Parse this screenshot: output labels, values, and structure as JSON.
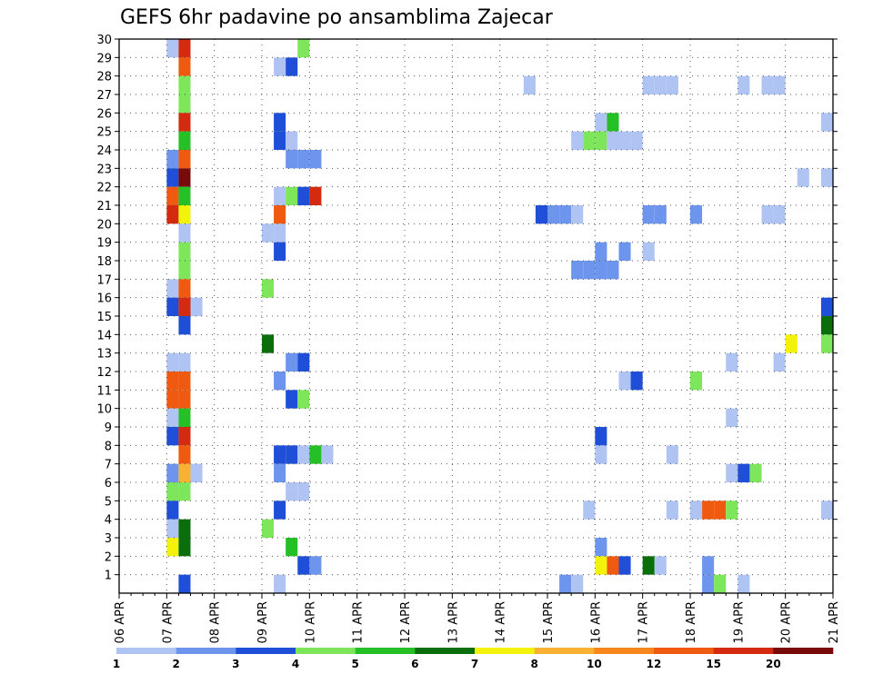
{
  "chart_data": {
    "type": "heatmap",
    "title": "GEFS 6hr padavine po ansamblima Zajecar",
    "x_tick_labels": [
      "06 APR",
      "07 APR",
      "08 APR",
      "09 APR",
      "10 APR",
      "11 APR",
      "12 APR",
      "13 APR",
      "14 APR",
      "15 APR",
      "16 APR",
      "17 APR",
      "18 APR",
      "19 APR",
      "20 APR",
      "21 APR"
    ],
    "x_steps_per_day": 4,
    "x_range": [
      "06 APR 00Z",
      "21 APR 00Z"
    ],
    "y_tick_labels": [
      "1",
      "2",
      "3",
      "4",
      "5",
      "6",
      "7",
      "8",
      "9",
      "10",
      "11",
      "12",
      "13",
      "14",
      "15",
      "16",
      "17",
      "18",
      "19",
      "20",
      "21",
      "22",
      "23",
      "24",
      "25",
      "26",
      "27",
      "28",
      "29",
      "30"
    ],
    "y_range": [
      0,
      30
    ],
    "grid": true,
    "colorbar": {
      "levels": [
        "1",
        "2",
        "3",
        "4",
        "5",
        "6",
        "7",
        "8",
        "10",
        "12",
        "15",
        "20"
      ],
      "colors": [
        "#b0c4f4",
        "#6e95ee",
        "#1f4fd8",
        "#7de65a",
        "#25c025",
        "#0a6e0a",
        "#f2f20a",
        "#f9b134",
        "#f7861c",
        "#f05a10",
        "#d42a10",
        "#7a0a0a"
      ]
    },
    "cells": [
      [
        30,
        5,
        1
      ],
      [
        30,
        16,
        1
      ],
      [
        30,
        17,
        2
      ],
      [
        30,
        18,
        1
      ],
      [
        30,
        47,
        3
      ],
      [
        30,
        48,
        6
      ],
      [
        30,
        49,
        5
      ],
      [
        30,
        50,
        1
      ],
      [
        29,
        4,
        0
      ],
      [
        29,
        5,
        10
      ],
      [
        29,
        15,
        3
      ],
      [
        28,
        5,
        9
      ],
      [
        28,
        13,
        0
      ],
      [
        28,
        14,
        2
      ],
      [
        27,
        5,
        3
      ],
      [
        27,
        34,
        0
      ],
      [
        27,
        44,
        0
      ],
      [
        27,
        45,
        0
      ],
      [
        27,
        46,
        0
      ],
      [
        27,
        52,
        0
      ],
      [
        27,
        54,
        0
      ],
      [
        27,
        55,
        0
      ],
      [
        26,
        5,
        3
      ],
      [
        25,
        5,
        10
      ],
      [
        25,
        13,
        2
      ],
      [
        25,
        40,
        0
      ],
      [
        25,
        41,
        4
      ],
      [
        25,
        59,
        0
      ],
      [
        24,
        5,
        4
      ],
      [
        24,
        13,
        2
      ],
      [
        24,
        14,
        0
      ],
      [
        24,
        38,
        0
      ],
      [
        24,
        39,
        3
      ],
      [
        24,
        40,
        3
      ],
      [
        24,
        41,
        0
      ],
      [
        24,
        42,
        0
      ],
      [
        24,
        43,
        0
      ],
      [
        23,
        4,
        1
      ],
      [
        23,
        5,
        9
      ],
      [
        23,
        14,
        1
      ],
      [
        23,
        15,
        1
      ],
      [
        23,
        16,
        1
      ],
      [
        22,
        4,
        2
      ],
      [
        22,
        5,
        11
      ],
      [
        22,
        57,
        0
      ],
      [
        22,
        59,
        0
      ],
      [
        21,
        4,
        9
      ],
      [
        21,
        5,
        4
      ],
      [
        21,
        13,
        0
      ],
      [
        21,
        14,
        3
      ],
      [
        21,
        15,
        2
      ],
      [
        21,
        16,
        10
      ],
      [
        20,
        4,
        10
      ],
      [
        20,
        5,
        6
      ],
      [
        20,
        13,
        9
      ],
      [
        20,
        35,
        2
      ],
      [
        20,
        36,
        1
      ],
      [
        20,
        37,
        1
      ],
      [
        20,
        38,
        0
      ],
      [
        20,
        44,
        1
      ],
      [
        20,
        45,
        1
      ],
      [
        20,
        48,
        1
      ],
      [
        20,
        54,
        0
      ],
      [
        20,
        55,
        0
      ],
      [
        19,
        5,
        0
      ],
      [
        19,
        12,
        0
      ],
      [
        19,
        13,
        0
      ],
      [
        18,
        5,
        3
      ],
      [
        18,
        13,
        2
      ],
      [
        18,
        40,
        1
      ],
      [
        18,
        42,
        1
      ],
      [
        18,
        44,
        0
      ],
      [
        17,
        5,
        3
      ],
      [
        17,
        38,
        1
      ],
      [
        17,
        39,
        1
      ],
      [
        17,
        40,
        1
      ],
      [
        17,
        41,
        1
      ],
      [
        16,
        4,
        0
      ],
      [
        16,
        5,
        9
      ],
      [
        16,
        12,
        3
      ],
      [
        15,
        4,
        2
      ],
      [
        15,
        5,
        10
      ],
      [
        15,
        6,
        0
      ],
      [
        15,
        59,
        2
      ],
      [
        14,
        5,
        2
      ],
      [
        14,
        59,
        5
      ],
      [
        13,
        12,
        5
      ],
      [
        13,
        56,
        6
      ],
      [
        13,
        59,
        3
      ],
      [
        12,
        4,
        0
      ],
      [
        12,
        5,
        0
      ],
      [
        12,
        14,
        1
      ],
      [
        12,
        15,
        2
      ],
      [
        12,
        51,
        0
      ],
      [
        12,
        55,
        0
      ],
      [
        11,
        4,
        9
      ],
      [
        11,
        5,
        9
      ],
      [
        11,
        13,
        1
      ],
      [
        11,
        42,
        0
      ],
      [
        11,
        43,
        2
      ],
      [
        11,
        48,
        3
      ],
      [
        10,
        4,
        9
      ],
      [
        10,
        5,
        9
      ],
      [
        10,
        14,
        2
      ],
      [
        10,
        15,
        3
      ],
      [
        9,
        4,
        0
      ],
      [
        9,
        5,
        4
      ],
      [
        9,
        51,
        0
      ],
      [
        8,
        4,
        2
      ],
      [
        8,
        5,
        10
      ],
      [
        8,
        40,
        2
      ],
      [
        7,
        5,
        9
      ],
      [
        7,
        13,
        2
      ],
      [
        7,
        14,
        2
      ],
      [
        7,
        15,
        0
      ],
      [
        7,
        16,
        4
      ],
      [
        7,
        17,
        0
      ],
      [
        7,
        40,
        0
      ],
      [
        7,
        46,
        0
      ],
      [
        6,
        4,
        1
      ],
      [
        6,
        5,
        7
      ],
      [
        6,
        6,
        0
      ],
      [
        6,
        13,
        1
      ],
      [
        6,
        51,
        0
      ],
      [
        6,
        52,
        2
      ],
      [
        6,
        53,
        3
      ],
      [
        5,
        4,
        3
      ],
      [
        5,
        5,
        3
      ],
      [
        5,
        14,
        0
      ],
      [
        5,
        15,
        0
      ],
      [
        4,
        4,
        2
      ],
      [
        4,
        13,
        2
      ],
      [
        4,
        39,
        0
      ],
      [
        4,
        46,
        0
      ],
      [
        4,
        48,
        0
      ],
      [
        4,
        49,
        9
      ],
      [
        4,
        50,
        9
      ],
      [
        4,
        51,
        3
      ],
      [
        4,
        59,
        0
      ],
      [
        3,
        4,
        0
      ],
      [
        3,
        5,
        5
      ],
      [
        3,
        12,
        3
      ],
      [
        2,
        4,
        6
      ],
      [
        2,
        5,
        5
      ],
      [
        2,
        14,
        4
      ],
      [
        2,
        40,
        1
      ],
      [
        1,
        15,
        2
      ],
      [
        1,
        16,
        1
      ],
      [
        1,
        40,
        6
      ],
      [
        1,
        41,
        9
      ],
      [
        1,
        42,
        2
      ],
      [
        1,
        44,
        5
      ],
      [
        1,
        45,
        0
      ],
      [
        1,
        49,
        1
      ],
      [
        0,
        5,
        2
      ],
      [
        0,
        13,
        0
      ],
      [
        0,
        37,
        1
      ],
      [
        0,
        38,
        0
      ],
      [
        0,
        49,
        1
      ],
      [
        0,
        50,
        3
      ],
      [
        0,
        52,
        0
      ],
      [
        -1,
        5,
        5
      ],
      [
        -1,
        35,
        1
      ]
    ]
  }
}
